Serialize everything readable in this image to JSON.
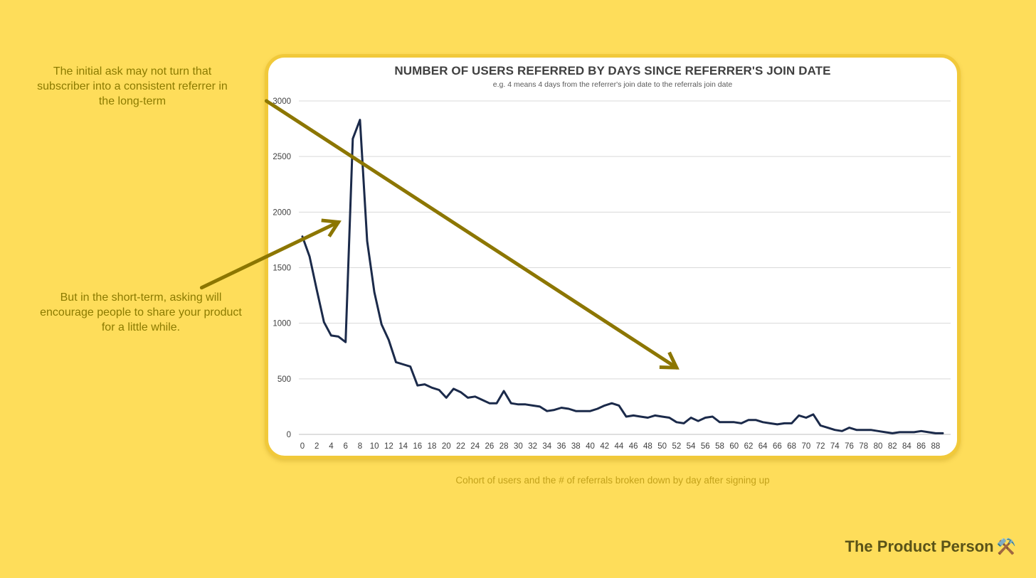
{
  "page": {
    "annotation_top": "The initial ask may not turn that subscriber into a consistent referrer in the long-term",
    "annotation_bottom": "But in the short-term, asking will encourage people to share your product for a little while.",
    "caption": "Cohort of users and the # of referrals broken down by day after signing up",
    "brand": "The Product Person",
    "brand_icon": "⚒️"
  },
  "colors": {
    "background": "#fedd5a",
    "line": "#1b2a4a",
    "arrow": "#8c7600",
    "annotation": "#8c7b00"
  },
  "chart_data": {
    "type": "line",
    "title": "NUMBER OF USERS REFERRED BY DAYS SINCE REFERRER'S JOIN DATE",
    "subtitle": "e.g. 4 means 4 days from the referrer's join date to the referrals join date",
    "xlabel": "",
    "ylabel": "",
    "ylim": [
      0,
      3000
    ],
    "yticks": [
      0,
      500,
      1000,
      1500,
      2000,
      2500,
      3000
    ],
    "xticks": [
      0,
      2,
      4,
      6,
      8,
      10,
      12,
      14,
      16,
      18,
      20,
      22,
      24,
      26,
      28,
      30,
      32,
      34,
      36,
      38,
      40,
      42,
      44,
      46,
      48,
      50,
      52,
      54,
      56,
      58,
      60,
      62,
      64,
      66,
      68,
      70,
      72,
      74,
      76,
      78,
      80,
      82,
      84,
      86,
      88
    ],
    "grid": true,
    "legend": "none",
    "x": [
      0,
      1,
      2,
      3,
      4,
      5,
      6,
      7,
      8,
      9,
      10,
      11,
      12,
      13,
      14,
      15,
      16,
      17,
      18,
      19,
      20,
      21,
      22,
      23,
      24,
      25,
      26,
      27,
      28,
      29,
      30,
      31,
      32,
      33,
      34,
      35,
      36,
      37,
      38,
      39,
      40,
      41,
      42,
      43,
      44,
      45,
      46,
      47,
      48,
      49,
      50,
      51,
      52,
      53,
      54,
      55,
      56,
      57,
      58,
      59,
      60,
      61,
      62,
      63,
      64,
      65,
      66,
      67,
      68,
      69,
      70,
      71,
      72,
      73,
      74,
      75,
      76,
      77,
      78,
      79,
      80,
      81,
      82,
      83,
      84,
      85,
      86,
      87,
      88,
      89
    ],
    "values": [
      1780,
      1600,
      1300,
      1010,
      890,
      880,
      830,
      2660,
      2830,
      1740,
      1280,
      990,
      850,
      650,
      630,
      610,
      440,
      450,
      420,
      400,
      330,
      410,
      380,
      330,
      340,
      310,
      280,
      280,
      390,
      280,
      270,
      270,
      260,
      250,
      210,
      220,
      240,
      230,
      210,
      210,
      210,
      230,
      260,
      280,
      260,
      160,
      170,
      160,
      150,
      170,
      160,
      150,
      110,
      100,
      150,
      120,
      150,
      160,
      110,
      110,
      110,
      100,
      130,
      130,
      110,
      100,
      90,
      100,
      100,
      170,
      150,
      180,
      80,
      60,
      40,
      30,
      60,
      40,
      40,
      40,
      30,
      20,
      10,
      20,
      20,
      20,
      30,
      20,
      10,
      10
    ],
    "annotations": [
      {
        "type": "arrow",
        "direction": "down-right",
        "from_x": -5,
        "from_y": 3000,
        "to_x": 52,
        "to_y": 600
      },
      {
        "type": "arrow",
        "direction": "up-right",
        "from_x": -14,
        "from_y": 1320,
        "to_x": 5,
        "to_y": 1910
      }
    ]
  }
}
